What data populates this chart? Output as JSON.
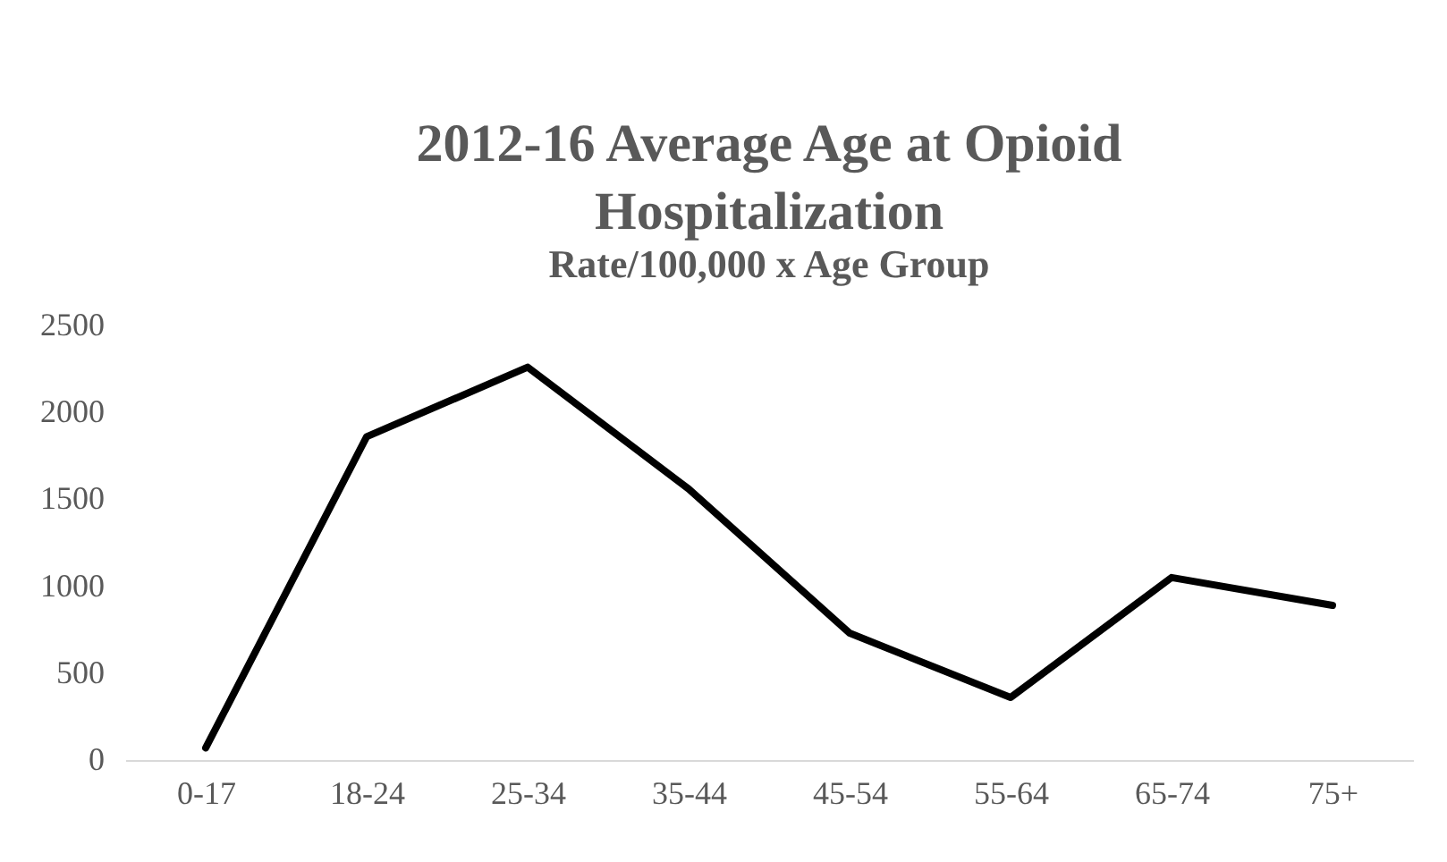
{
  "chart_data": {
    "type": "line",
    "title": "2012-16 Average Age at Opioid Hospitalization",
    "subtitle": "Rate/100,000 x Age Group",
    "categories": [
      "0-17",
      "18-24",
      "25-34",
      "35-44",
      "45-54",
      "55-64",
      "65-74",
      "75+"
    ],
    "series": [
      {
        "color": "#000000",
        "values": [
          70,
          1860,
          2260,
          1560,
          730,
          360,
          1050,
          890
        ]
      }
    ],
    "ylim": [
      0,
      2500
    ],
    "yticks": [
      0,
      500,
      1000,
      1500,
      2000,
      2500
    ],
    "grid": false,
    "legend": false,
    "marker": "none",
    "line_style": "solid"
  }
}
